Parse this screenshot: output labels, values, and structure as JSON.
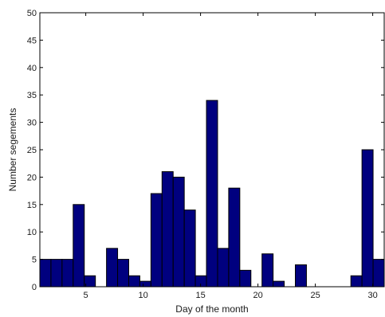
{
  "chart_data": {
    "type": "bar",
    "title": "",
    "xlabel": "Day of the month",
    "ylabel": "Number segements",
    "xlim": [
      1,
      31
    ],
    "ylim": [
      0,
      50
    ],
    "x_ticks": [
      5,
      10,
      15,
      20,
      25,
      30
    ],
    "y_ticks": [
      0,
      5,
      10,
      15,
      20,
      25,
      30,
      35,
      40,
      45,
      50
    ],
    "grid": false,
    "legend": "none",
    "bar_color": "#00007f",
    "bar_edge_color": "#000000",
    "x": [
      1,
      2,
      3,
      4,
      5,
      6,
      7,
      8,
      9,
      10,
      11,
      12,
      13,
      14,
      15,
      16,
      17,
      18,
      19,
      20,
      21,
      22,
      23,
      24,
      25,
      26,
      27,
      28,
      29,
      30,
      31
    ],
    "values": [
      5,
      5,
      5,
      15,
      2,
      0,
      7,
      5,
      2,
      1,
      17,
      21,
      20,
      14,
      2,
      34,
      7,
      18,
      3,
      0,
      6,
      1,
      0,
      4,
      0,
      0,
      0,
      0,
      2,
      25,
      5
    ]
  }
}
